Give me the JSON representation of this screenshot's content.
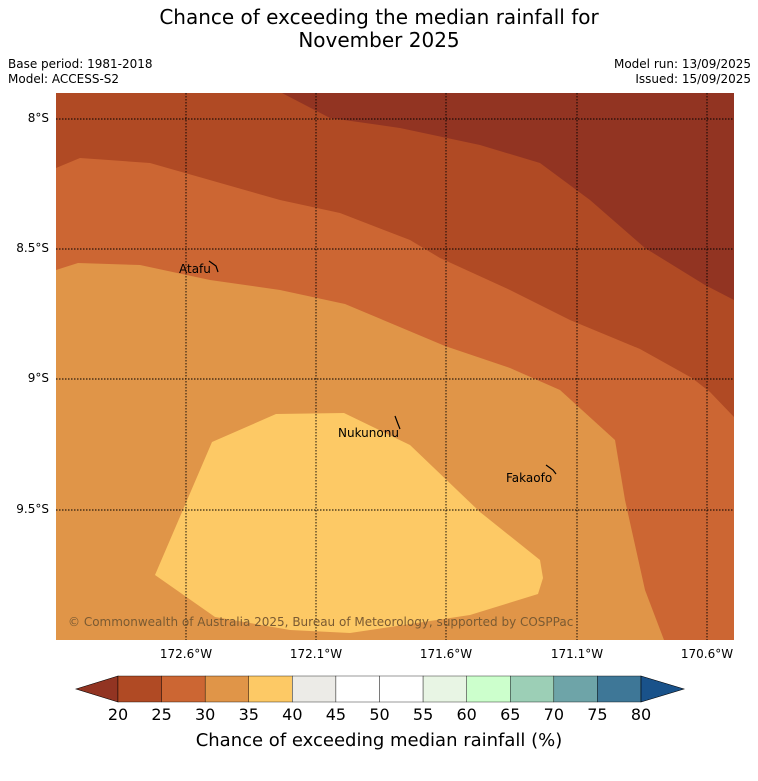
{
  "title": {
    "line1": "Chance of exceeding the median rainfall for",
    "line2": "November 2025"
  },
  "meta": {
    "base_period": "Base period: 1981-2018",
    "model": "Model: ACCESS-S2",
    "model_run": "Model run: 13/09/2025",
    "issued": "Issued: 15/09/2025"
  },
  "map": {
    "latitude_labels": [
      "8°S",
      "8.5°S",
      "9°S",
      "9.5°S"
    ],
    "longitude_labels": [
      "172.6°W",
      "172.1°W",
      "171.6°W",
      "171.1°W",
      "170.6°W"
    ],
    "places": {
      "atafu": "Atafu",
      "nukunonu": "Nukunonu",
      "fakaofo": "Fakaofo"
    },
    "copyright": "© Commonwealth of Australia 2025, Bureau of Meteorology, supported by COSPPac",
    "grid": true,
    "grid_style": "dotted"
  },
  "colorbar": {
    "ticks": [
      "20",
      "25",
      "30",
      "35",
      "40",
      "45",
      "50",
      "55",
      "60",
      "65",
      "70",
      "75",
      "80"
    ],
    "colors": [
      "#b04a24",
      "#cc6633",
      "#e09548",
      "#fdc965",
      "#ecebe7",
      "#ffffff",
      "#ffffff",
      "#e8f5e4",
      "#ccffcc",
      "#9ccfb6",
      "#6ea4a8",
      "#3e7797"
    ],
    "under_color": "#923422",
    "over_color": "#19528a",
    "label": "Chance of exceeding median rainfall (%)"
  },
  "chart_data": {
    "type": "heatmap",
    "title": "Chance of exceeding the median rainfall for November 2025",
    "xlabel": "",
    "ylabel": "",
    "colorbar_label": "Chance of exceeding median rainfall (%)",
    "levels": [
      20,
      25,
      30,
      35,
      40,
      45,
      50,
      55,
      60,
      65,
      70,
      75,
      80
    ],
    "lon_ticks": [
      "172.6°W",
      "172.1°W",
      "171.6°W",
      "171.1°W",
      "170.6°W"
    ],
    "lat_ticks": [
      "8°S",
      "8.5°S",
      "9°S",
      "9.5°S"
    ],
    "bands_present": [
      "<20",
      "20-25",
      "25-30",
      "30-35",
      "35-40"
    ]
  }
}
